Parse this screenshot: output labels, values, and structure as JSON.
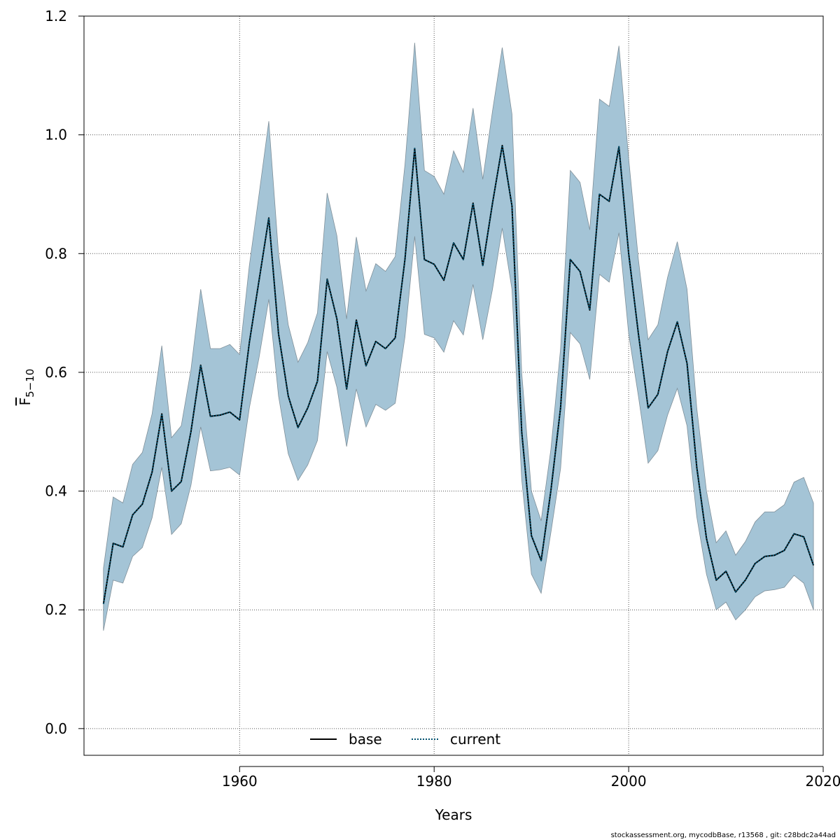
{
  "footer_text": "stockassessment.org, mycodbBase, r13568 , git: c28bdc2a44ad",
  "colors": {
    "band_fill": "#a4c4d6",
    "band_stroke": "#7f8f99",
    "base_line": "#000000",
    "current_line": "#00506e",
    "grid": "#555555"
  },
  "chart_data": {
    "type": "line",
    "title": "",
    "xlabel": "Years",
    "ylabel": "F̅5−10",
    "ylabel_main": "F",
    "ylabel_sub": "5−10",
    "xlim": [
      1944,
      2020
    ],
    "ylim": [
      -0.045,
      1.2
    ],
    "x_ticks": [
      1960,
      1980,
      2000,
      2020
    ],
    "y_ticks": [
      0.0,
      0.2,
      0.4,
      0.6,
      0.8,
      1.0,
      1.2
    ],
    "x_tick_labels": [
      "1960",
      "1980",
      "2000",
      "2020"
    ],
    "y_tick_labels": [
      "0.0",
      "0.2",
      "0.4",
      "0.6",
      "0.8",
      "1.0",
      "1.2"
    ],
    "grid": true,
    "legend_position": "bottom-center",
    "years": [
      1946,
      1947,
      1948,
      1949,
      1950,
      1951,
      1952,
      1953,
      1954,
      1955,
      1956,
      1957,
      1958,
      1959,
      1960,
      1961,
      1962,
      1963,
      1964,
      1965,
      1966,
      1967,
      1968,
      1969,
      1970,
      1971,
      1972,
      1973,
      1974,
      1975,
      1976,
      1977,
      1978,
      1979,
      1980,
      1981,
      1982,
      1983,
      1984,
      1985,
      1986,
      1987,
      1988,
      1989,
      1990,
      1991,
      1992,
      1993,
      1994,
      1995,
      1996,
      1997,
      1998,
      1999,
      2000,
      2001,
      2002,
      2003,
      2004,
      2005,
      2006,
      2007,
      2008,
      2009,
      2010,
      2011,
      2012,
      2013,
      2014,
      2015,
      2016,
      2017,
      2018,
      2019
    ],
    "upper": [
      0.27,
      0.39,
      0.38,
      0.445,
      0.465,
      0.53,
      0.645,
      0.49,
      0.51,
      0.605,
      0.74,
      0.64,
      0.64,
      0.647,
      0.63,
      0.78,
      0.9,
      1.023,
      0.8,
      0.68,
      0.617,
      0.65,
      0.7,
      0.902,
      0.83,
      0.69,
      0.828,
      0.737,
      0.783,
      0.77,
      0.795,
      0.95,
      1.155,
      0.94,
      0.93,
      0.9,
      0.973,
      0.937,
      1.045,
      0.925,
      1.04,
      1.147,
      1.035,
      0.6,
      0.4,
      0.35,
      0.47,
      0.64,
      0.94,
      0.92,
      0.84,
      1.06,
      1.048,
      1.15,
      0.96,
      0.79,
      0.655,
      0.68,
      0.76,
      0.82,
      0.74,
      0.54,
      0.4,
      0.313,
      0.333,
      0.292,
      0.315,
      0.348,
      0.365,
      0.365,
      0.377,
      0.415,
      0.423,
      0.38
    ],
    "lower": [
      0.165,
      0.25,
      0.245,
      0.29,
      0.305,
      0.355,
      0.44,
      0.327,
      0.345,
      0.41,
      0.508,
      0.434,
      0.436,
      0.44,
      0.427,
      0.54,
      0.625,
      0.723,
      0.56,
      0.463,
      0.418,
      0.444,
      0.485,
      0.635,
      0.575,
      0.475,
      0.572,
      0.508,
      0.546,
      0.536,
      0.548,
      0.66,
      0.829,
      0.664,
      0.658,
      0.634,
      0.687,
      0.663,
      0.748,
      0.655,
      0.74,
      0.843,
      0.74,
      0.42,
      0.26,
      0.228,
      0.33,
      0.438,
      0.667,
      0.648,
      0.588,
      0.765,
      0.752,
      0.835,
      0.665,
      0.56,
      0.447,
      0.468,
      0.528,
      0.573,
      0.51,
      0.357,
      0.26,
      0.2,
      0.213,
      0.183,
      0.2,
      0.222,
      0.232,
      0.234,
      0.238,
      0.258,
      0.245,
      0.2
    ],
    "series": [
      {
        "name": "base",
        "style": "solid",
        "values": [
          0.21,
          0.312,
          0.306,
          0.36,
          0.378,
          0.432,
          0.53,
          0.4,
          0.416,
          0.5,
          0.612,
          0.526,
          0.528,
          0.533,
          0.52,
          0.65,
          0.755,
          0.86,
          0.665,
          0.56,
          0.507,
          0.54,
          0.585,
          0.757,
          0.69,
          0.572,
          0.688,
          0.611,
          0.652,
          0.64,
          0.658,
          0.79,
          0.977,
          0.79,
          0.782,
          0.755,
          0.818,
          0.79,
          0.885,
          0.78,
          0.885,
          0.982,
          0.88,
          0.5,
          0.325,
          0.283,
          0.4,
          0.54,
          0.79,
          0.77,
          0.705,
          0.9,
          0.888,
          0.98,
          0.8,
          0.665,
          0.54,
          0.563,
          0.635,
          0.685,
          0.615,
          0.44,
          0.32,
          0.25,
          0.265,
          0.23,
          0.25,
          0.278,
          0.29,
          0.292,
          0.3,
          0.328,
          0.323,
          0.275
        ]
      },
      {
        "name": "current",
        "style": "dotted",
        "values": [
          0.21,
          0.312,
          0.306,
          0.36,
          0.378,
          0.432,
          0.53,
          0.4,
          0.416,
          0.5,
          0.612,
          0.526,
          0.528,
          0.533,
          0.52,
          0.65,
          0.755,
          0.86,
          0.665,
          0.56,
          0.507,
          0.54,
          0.585,
          0.757,
          0.69,
          0.572,
          0.688,
          0.611,
          0.652,
          0.64,
          0.658,
          0.79,
          0.977,
          0.79,
          0.782,
          0.755,
          0.818,
          0.79,
          0.885,
          0.78,
          0.885,
          0.982,
          0.88,
          0.5,
          0.325,
          0.283,
          0.4,
          0.54,
          0.79,
          0.77,
          0.705,
          0.9,
          0.888,
          0.98,
          0.8,
          0.665,
          0.54,
          0.563,
          0.635,
          0.685,
          0.615,
          0.44,
          0.32,
          0.25,
          0.265,
          0.23,
          0.25,
          0.278,
          0.29,
          0.292,
          0.3,
          0.328,
          0.323,
          0.275
        ]
      }
    ]
  }
}
